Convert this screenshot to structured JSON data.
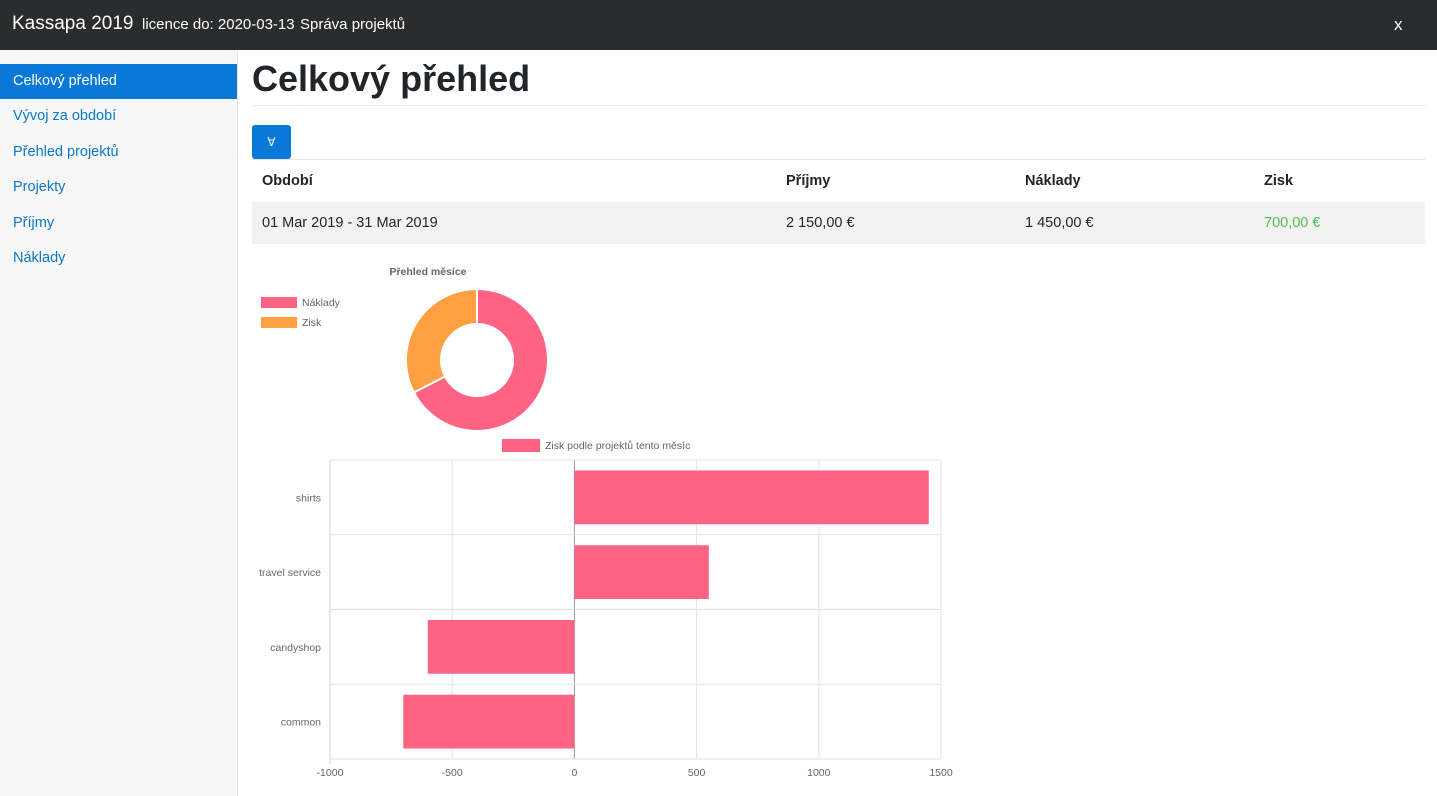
{
  "header": {
    "brand": "Kassapa 2019",
    "licence": "licence do: 2020-03-13",
    "projects_link": "Správa projektů",
    "close_label": "x"
  },
  "sidebar": {
    "items": [
      {
        "label": "Celkový přehled",
        "active": true
      },
      {
        "label": "Vývoj za období",
        "active": false
      },
      {
        "label": "Přehled projektů",
        "active": false
      },
      {
        "label": "Projekty",
        "active": false
      },
      {
        "label": "Příjmy",
        "active": false
      },
      {
        "label": "Náklady",
        "active": false
      }
    ]
  },
  "main": {
    "title": "Celkový přehled",
    "toggle_label": "∀",
    "table": {
      "headers": [
        "Období",
        "Příjmy",
        "Náklady",
        "Zisk"
      ],
      "rows": [
        [
          "01 Mar 2019 - 31 Mar 2019",
          "2 150,00 €",
          "1 450,00 €",
          "700,00 €"
        ]
      ]
    }
  },
  "colors": {
    "accent": "#0a78d7",
    "navbar": "#2b2c2d",
    "profit_text": "#4cbf4c",
    "pink": "#ff6384",
    "orange": "#ff9f40"
  },
  "chart_data": [
    {
      "type": "pie",
      "variant": "doughnut",
      "title": "Přehled měsíce",
      "legend_position": "left",
      "labels": [
        "Náklady",
        "Zisk"
      ],
      "values": [
        1450,
        700
      ],
      "colors": [
        "#ff6384",
        "#ff9f40"
      ]
    },
    {
      "type": "bar",
      "orientation": "horizontal",
      "categories": [
        "shirts",
        "travel service",
        "candyshop",
        "common"
      ],
      "series": [
        {
          "name": "Zisk podle projektů tento měsíc",
          "values": [
            1450,
            550,
            -600,
            -700
          ],
          "color": "#ff6384"
        }
      ],
      "xlim": [
        -1000,
        1500
      ],
      "x_ticks": [
        -1000,
        -500,
        0,
        500,
        1000,
        1500
      ],
      "legend_position": "top",
      "grid": true
    }
  ]
}
